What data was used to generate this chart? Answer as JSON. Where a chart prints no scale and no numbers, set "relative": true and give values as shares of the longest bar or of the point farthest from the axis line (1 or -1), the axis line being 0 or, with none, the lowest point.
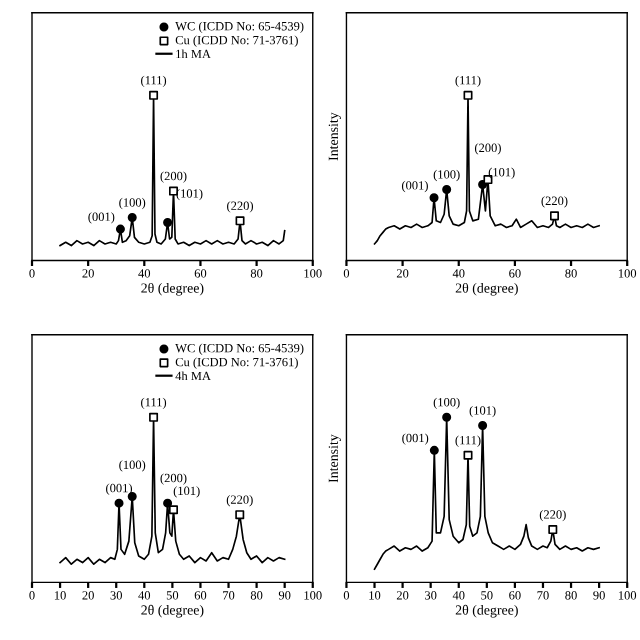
{
  "chart_data": [
    {
      "type": "line",
      "relative": true,
      "xlabel": "2θ (degree)",
      "xlim": [
        0,
        100
      ],
      "xticks": [
        0,
        20,
        40,
        60,
        80,
        100
      ],
      "tick_labels": "x",
      "legend": "top right",
      "grid": false,
      "series": [
        {
          "name": "WC (ICDD No: 65-4539)",
          "type": "scatter",
          "marker": "circle",
          "color": "#000000",
          "x": [
            31.5,
            35.7,
            48.3
          ],
          "values": [
            0.19,
            0.26,
            0.23
          ]
        },
        {
          "name": "Cu (ICDD No: 71-3761)",
          "type": "scatter",
          "marker": "square",
          "color": "#000000",
          "x": [
            43.3,
            50.4,
            74.1
          ],
          "values": [
            1,
            0.42,
            0.24
          ]
        },
        {
          "name": "1h MA",
          "type": "line",
          "color": "#000000",
          "x": [
            10,
            12,
            14,
            16,
            18,
            20,
            22,
            24,
            26,
            28,
            30,
            30.8,
            31.5,
            32.2,
            33.5,
            34.8,
            35.7,
            36.5,
            38,
            40,
            42,
            42.8,
            43.3,
            43.8,
            44.5,
            46,
            47.5,
            48.3,
            49,
            49.8,
            50.4,
            51,
            52,
            54,
            56,
            58,
            60,
            62,
            64,
            66,
            68,
            70,
            72,
            73.4,
            74.1,
            74.8,
            76,
            78,
            80,
            82,
            84,
            86,
            88,
            89.5,
            90
          ],
          "values": [
            0.09,
            0.11,
            0.09,
            0.12,
            0.1,
            0.11,
            0.09,
            0.12,
            0.1,
            0.11,
            0.1,
            0.12,
            0.19,
            0.11,
            0.12,
            0.15,
            0.26,
            0.14,
            0.11,
            0.1,
            0.11,
            0.15,
            1,
            0.16,
            0.11,
            0.1,
            0.13,
            0.23,
            0.13,
            0.14,
            0.42,
            0.13,
            0.1,
            0.11,
            0.09,
            0.11,
            0.1,
            0.12,
            0.1,
            0.12,
            0.1,
            0.11,
            0.1,
            0.13,
            0.24,
            0.12,
            0.1,
            0.12,
            0.1,
            0.11,
            0.09,
            0.12,
            0.1,
            0.12,
            0.18
          ]
        }
      ],
      "annotations": [
        {
          "text": "(001)",
          "x": 31.5,
          "y": 0.19
        },
        {
          "text": "(100)",
          "x": 35.7,
          "y": 0.26
        },
        {
          "text": "(111)",
          "x": 43.3,
          "y": 1
        },
        {
          "text": "(101)",
          "x": 48.3,
          "y": 0.23
        },
        {
          "text": "(200)",
          "x": 50.4,
          "y": 0.42
        },
        {
          "text": "(220)",
          "x": 74.1,
          "y": 0.24
        }
      ]
    },
    {
      "type": "line",
      "relative": true,
      "xlabel": "2θ (degree)",
      "ylabel": "Intensity",
      "xlim": [
        0,
        100
      ],
      "xticks": [
        0,
        20,
        40,
        60,
        80,
        100
      ],
      "tick_labels": "x",
      "grid": false,
      "series": [
        {
          "type": "scatter",
          "marker": "circle",
          "color": "#000000",
          "x": [
            31.2,
            35.7,
            48.5
          ],
          "values": [
            0.38,
            0.43,
            0.46
          ]
        },
        {
          "type": "scatter",
          "marker": "square",
          "color": "#000000",
          "x": [
            43.3,
            50.4,
            74.1
          ],
          "values": [
            1,
            0.49,
            0.27
          ]
        },
        {
          "type": "line",
          "color": "#000000",
          "x": [
            10,
            11,
            12,
            13,
            14,
            15,
            17,
            19,
            21,
            23,
            25,
            27,
            29,
            30.5,
            31.2,
            32,
            33.5,
            34.8,
            35.7,
            36.6,
            38,
            40,
            42,
            42.8,
            43.3,
            43.8,
            45,
            47,
            48.5,
            49.5,
            50.4,
            51.2,
            53,
            55,
            57,
            59,
            60.5,
            62,
            64,
            66,
            68,
            70,
            72,
            73.4,
            74.1,
            74.8,
            76,
            78,
            80,
            82,
            84,
            86,
            88,
            90
          ],
          "values": [
            0.1,
            0.12,
            0.15,
            0.17,
            0.19,
            0.2,
            0.21,
            0.19,
            0.21,
            0.2,
            0.22,
            0.2,
            0.21,
            0.23,
            0.38,
            0.24,
            0.23,
            0.28,
            0.43,
            0.27,
            0.22,
            0.21,
            0.23,
            0.3,
            1,
            0.3,
            0.24,
            0.25,
            0.46,
            0.3,
            0.49,
            0.27,
            0.21,
            0.22,
            0.2,
            0.21,
            0.25,
            0.2,
            0.22,
            0.24,
            0.2,
            0.21,
            0.2,
            0.22,
            0.27,
            0.21,
            0.2,
            0.22,
            0.2,
            0.21,
            0.2,
            0.22,
            0.2,
            0.21
          ]
        }
      ],
      "annotations": [
        {
          "text": "(001)",
          "x": 31.2,
          "y": 0.38
        },
        {
          "text": "(100)",
          "x": 35.7,
          "y": 0.43
        },
        {
          "text": "(111)",
          "x": 43.3,
          "y": 1
        },
        {
          "text": "(101)",
          "x": 48.5,
          "y": 0.46
        },
        {
          "text": "(200)",
          "x": 50.4,
          "y": 0.49
        },
        {
          "text": "(220)",
          "x": 74.1,
          "y": 0.27
        }
      ]
    },
    {
      "type": "line",
      "relative": true,
      "xlabel": "2θ (degree)",
      "xlim": [
        0,
        100
      ],
      "xticks": [
        0,
        10,
        20,
        30,
        40,
        50,
        60,
        70,
        80,
        90,
        100
      ],
      "tick_labels": "x",
      "legend": "top right",
      "grid": false,
      "series": [
        {
          "name": "WC (ICDD No: 65-4539)",
          "type": "scatter",
          "marker": "circle",
          "color": "#000000",
          "x": [
            31,
            35.7,
            48.3
          ],
          "values": [
            0.48,
            0.52,
            0.48
          ]
        },
        {
          "name": "Cu (ICDD No: 71-3761)",
          "type": "scatter",
          "marker": "square",
          "color": "#000000",
          "x": [
            43.3,
            50.4,
            74
          ],
          "values": [
            1,
            0.44,
            0.41
          ]
        },
        {
          "name": "4h MA",
          "type": "line",
          "color": "#000000",
          "x": [
            10,
            12,
            14,
            16,
            18,
            20,
            22,
            24,
            26,
            28,
            29.5,
            30.4,
            31,
            31.7,
            33,
            34.5,
            35.7,
            36.6,
            38,
            40,
            41.5,
            42.7,
            43.3,
            43.9,
            45,
            46.5,
            47.6,
            48.3,
            49.1,
            49.8,
            50.4,
            51.2,
            52.5,
            54,
            56,
            58,
            60,
            62,
            64,
            66,
            68,
            70,
            71.5,
            72.8,
            74,
            75.2,
            76.5,
            78,
            80,
            82,
            84,
            86,
            88,
            90
          ],
          "values": [
            0.12,
            0.15,
            0.11,
            0.14,
            0.12,
            0.15,
            0.11,
            0.14,
            0.12,
            0.15,
            0.14,
            0.2,
            0.48,
            0.2,
            0.17,
            0.25,
            0.52,
            0.24,
            0.16,
            0.14,
            0.17,
            0.28,
            1,
            0.3,
            0.18,
            0.2,
            0.3,
            0.48,
            0.3,
            0.28,
            0.44,
            0.25,
            0.17,
            0.14,
            0.16,
            0.12,
            0.15,
            0.13,
            0.18,
            0.13,
            0.15,
            0.14,
            0.2,
            0.28,
            0.41,
            0.26,
            0.18,
            0.14,
            0.16,
            0.12,
            0.15,
            0.13,
            0.15,
            0.14
          ]
        }
      ],
      "annotations": [
        {
          "text": "(001)",
          "x": 31,
          "y": 0.48
        },
        {
          "text": "(100)",
          "x": 35.7,
          "y": 0.52
        },
        {
          "text": "(111)",
          "x": 43.3,
          "y": 1
        },
        {
          "text": "(101)",
          "x": 48.3,
          "y": 0.48
        },
        {
          "text": "(200)",
          "x": 50.4,
          "y": 0.44
        },
        {
          "text": "(220)",
          "x": 74,
          "y": 0.41
        }
      ]
    },
    {
      "type": "line",
      "relative": true,
      "xlabel": "2θ (degree)",
      "ylabel": "Intensity",
      "xlim": [
        0,
        100
      ],
      "xticks": [
        0,
        10,
        20,
        30,
        40,
        50,
        60,
        70,
        80,
        90,
        100
      ],
      "tick_labels": "x",
      "grid": false,
      "series": [
        {
          "type": "scatter",
          "marker": "circle",
          "color": "#000000",
          "x": [
            31.3,
            35.7,
            48.5
          ],
          "values": [
            0.8,
            1,
            0.95
          ]
        },
        {
          "type": "scatter",
          "marker": "square",
          "color": "#000000",
          "x": [
            43.3,
            73.5
          ],
          "values": [
            0.77,
            0.32
          ]
        },
        {
          "type": "line",
          "color": "#000000",
          "x": [
            10,
            11,
            12,
            13,
            14,
            15,
            17,
            19,
            21,
            23,
            25,
            27,
            29,
            30.5,
            31.3,
            32,
            33.5,
            34.8,
            35.7,
            36.6,
            38,
            40,
            41.5,
            42.7,
            43.3,
            43.9,
            45,
            46.5,
            47.7,
            48.5,
            49.3,
            50.5,
            52,
            54,
            56,
            58,
            60,
            62,
            63.2,
            64,
            64.8,
            66,
            68,
            70,
            71.5,
            72.8,
            73.5,
            74.3,
            76,
            78,
            80,
            82,
            84,
            86,
            88,
            90
          ],
          "values": [
            0.08,
            0.11,
            0.14,
            0.17,
            0.19,
            0.2,
            0.22,
            0.19,
            0.21,
            0.2,
            0.22,
            0.19,
            0.21,
            0.25,
            0.8,
            0.3,
            0.3,
            0.4,
            1,
            0.38,
            0.28,
            0.24,
            0.26,
            0.35,
            0.77,
            0.34,
            0.28,
            0.3,
            0.4,
            0.95,
            0.4,
            0.3,
            0.24,
            0.22,
            0.2,
            0.22,
            0.2,
            0.23,
            0.28,
            0.35,
            0.27,
            0.22,
            0.2,
            0.22,
            0.21,
            0.25,
            0.32,
            0.23,
            0.2,
            0.22,
            0.2,
            0.21,
            0.19,
            0.21,
            0.2,
            0.21
          ]
        }
      ],
      "annotations": [
        {
          "text": "(001)",
          "x": 31.3,
          "y": 0.8
        },
        {
          "text": "(100)",
          "x": 35.7,
          "y": 1
        },
        {
          "text": "(111)",
          "x": 43.3,
          "y": 0.77
        },
        {
          "text": "(101)",
          "x": 48.5,
          "y": 0.95
        },
        {
          "text": "(220)",
          "x": 73.5,
          "y": 0.32
        }
      ]
    }
  ]
}
